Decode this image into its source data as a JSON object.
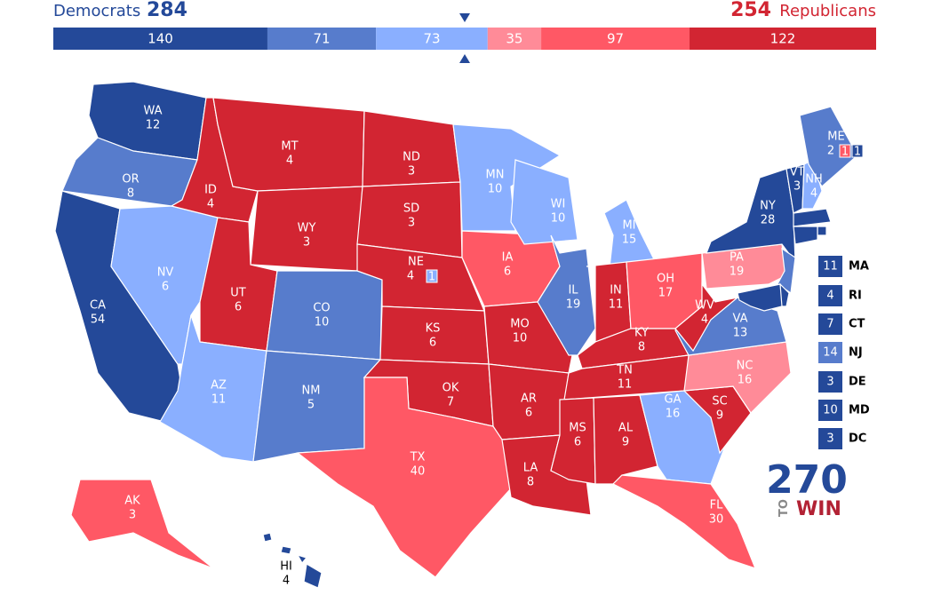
{
  "header": {
    "dem_name": "Democrats",
    "dem_total": 284,
    "rep_total": 254,
    "rep_name": "Republicans",
    "dem_color": "#244999",
    "rep_color": "#d22532"
  },
  "bar": [
    {
      "value": 140,
      "color": "#244999"
    },
    {
      "value": 71,
      "color": "#577ccc"
    },
    {
      "value": 73,
      "color": "#8aafff"
    },
    {
      "value": 35,
      "color": "#ff8b98"
    },
    {
      "value": 97,
      "color": "#ff5865"
    },
    {
      "value": 122,
      "color": "#d22532"
    }
  ],
  "states": [
    {
      "abbr": "WA",
      "ev": 12,
      "color": "#244999"
    },
    {
      "abbr": "OR",
      "ev": 8,
      "color": "#577ccc"
    },
    {
      "abbr": "CA",
      "ev": 54,
      "color": "#244999"
    },
    {
      "abbr": "NV",
      "ev": 6,
      "color": "#8aafff"
    },
    {
      "abbr": "ID",
      "ev": 4,
      "color": "#d22532"
    },
    {
      "abbr": "MT",
      "ev": 4,
      "color": "#d22532"
    },
    {
      "abbr": "WY",
      "ev": 3,
      "color": "#d22532"
    },
    {
      "abbr": "UT",
      "ev": 6,
      "color": "#d22532"
    },
    {
      "abbr": "CO",
      "ev": 10,
      "color": "#577ccc"
    },
    {
      "abbr": "AZ",
      "ev": 11,
      "color": "#8aafff"
    },
    {
      "abbr": "NM",
      "ev": 5,
      "color": "#577ccc"
    },
    {
      "abbr": "ND",
      "ev": 3,
      "color": "#d22532"
    },
    {
      "abbr": "SD",
      "ev": 3,
      "color": "#d22532"
    },
    {
      "abbr": "NE",
      "ev": 4,
      "color": "#d22532",
      "districts": [
        {
          "ev": 1,
          "color": "#8aafff"
        }
      ]
    },
    {
      "abbr": "KS",
      "ev": 6,
      "color": "#d22532"
    },
    {
      "abbr": "OK",
      "ev": 7,
      "color": "#d22532"
    },
    {
      "abbr": "TX",
      "ev": 40,
      "color": "#ff5865"
    },
    {
      "abbr": "MN",
      "ev": 10,
      "color": "#8aafff"
    },
    {
      "abbr": "IA",
      "ev": 6,
      "color": "#ff5865"
    },
    {
      "abbr": "MO",
      "ev": 10,
      "color": "#d22532"
    },
    {
      "abbr": "AR",
      "ev": 6,
      "color": "#d22532"
    },
    {
      "abbr": "LA",
      "ev": 8,
      "color": "#d22532"
    },
    {
      "abbr": "WI",
      "ev": 10,
      "color": "#8aafff"
    },
    {
      "abbr": "IL",
      "ev": 19,
      "color": "#577ccc"
    },
    {
      "abbr": "MI",
      "ev": 15,
      "color": "#8aafff"
    },
    {
      "abbr": "IN",
      "ev": 11,
      "color": "#d22532"
    },
    {
      "abbr": "OH",
      "ev": 17,
      "color": "#ff5865"
    },
    {
      "abbr": "KY",
      "ev": 8,
      "color": "#d22532"
    },
    {
      "abbr": "TN",
      "ev": 11,
      "color": "#d22532"
    },
    {
      "abbr": "MS",
      "ev": 6,
      "color": "#d22532"
    },
    {
      "abbr": "AL",
      "ev": 9,
      "color": "#d22532"
    },
    {
      "abbr": "GA",
      "ev": 16,
      "color": "#8aafff"
    },
    {
      "abbr": "FL",
      "ev": 30,
      "color": "#ff5865"
    },
    {
      "abbr": "SC",
      "ev": 9,
      "color": "#d22532"
    },
    {
      "abbr": "NC",
      "ev": 16,
      "color": "#ff8b98"
    },
    {
      "abbr": "VA",
      "ev": 13,
      "color": "#577ccc"
    },
    {
      "abbr": "WV",
      "ev": 4,
      "color": "#d22532"
    },
    {
      "abbr": "PA",
      "ev": 19,
      "color": "#ff8b98"
    },
    {
      "abbr": "NY",
      "ev": 28,
      "color": "#244999"
    },
    {
      "abbr": "VT",
      "ev": 3,
      "color": "#244999"
    },
    {
      "abbr": "NH",
      "ev": 4,
      "color": "#8aafff"
    },
    {
      "abbr": "ME",
      "ev": 2,
      "color": "#577ccc",
      "districts": [
        {
          "ev": 1,
          "color": "#ff5865"
        },
        {
          "ev": 1,
          "color": "#244999"
        }
      ]
    },
    {
      "abbr": "MA",
      "ev": 11,
      "color": "#244999"
    },
    {
      "abbr": "RI",
      "ev": 4,
      "color": "#244999"
    },
    {
      "abbr": "CT",
      "ev": 7,
      "color": "#244999"
    },
    {
      "abbr": "NJ",
      "ev": 14,
      "color": "#577ccc"
    },
    {
      "abbr": "DE",
      "ev": 3,
      "color": "#244999"
    },
    {
      "abbr": "MD",
      "ev": 10,
      "color": "#244999"
    },
    {
      "abbr": "DC",
      "ev": 3,
      "color": "#244999"
    },
    {
      "abbr": "AK",
      "ev": 3,
      "color": "#ff5865"
    },
    {
      "abbr": "HI",
      "ev": 4,
      "color": "#244999"
    }
  ],
  "logo": {
    "number": "270",
    "to": "TO",
    "win": "WIN"
  }
}
